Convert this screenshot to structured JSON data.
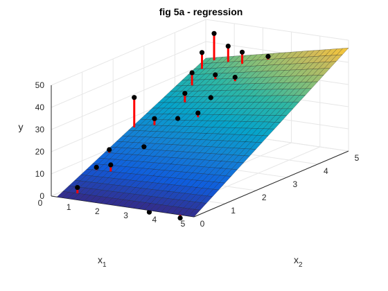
{
  "chart_data": {
    "type": "surface",
    "title": "fig 5a - regression",
    "xlabel": "x",
    "xlabel_sub": "1",
    "ylabel": "x",
    "ylabel_sub": "2",
    "zlabel": "y",
    "xlim": [
      0,
      5
    ],
    "ylim": [
      0,
      5
    ],
    "zlim": [
      0,
      50
    ],
    "xticks": [
      "0",
      "1",
      "2",
      "3",
      "4",
      "5"
    ],
    "yticks": [
      "0",
      "1",
      "2",
      "3",
      "4",
      "5"
    ],
    "zticks": [
      "0",
      "10",
      "20",
      "30",
      "40",
      "50"
    ],
    "grid": true,
    "colormap": "parula",
    "surface_points": [
      {
        "x1": 0.2,
        "x2": 0.0,
        "y": 0.0
      },
      {
        "x1": 5.0,
        "x2": 0.0,
        "y": 0.0
      },
      {
        "x1": 0.0,
        "x2": 5.0,
        "y": 32.5
      },
      {
        "x1": 5.0,
        "x2": 5.0,
        "y": 46.5
      }
    ],
    "points": [
      {
        "x1": 4.3,
        "x2": 0.2,
        "y": -3
      },
      {
        "x1": 3.0,
        "x2": 0.4,
        "y": -4
      },
      {
        "x1": 0.7,
        "x2": 0.2,
        "y": 4
      },
      {
        "x1": 0.3,
        "x2": 1.6,
        "y": 12
      },
      {
        "x1": 0.5,
        "x2": 1.0,
        "y": 8
      },
      {
        "x1": 1.0,
        "x2": 1.0,
        "y": 10
      },
      {
        "x1": 3.0,
        "x2": 1.0,
        "y": 2
      },
      {
        "x1": 4.0,
        "x2": 1.0,
        "y": 4
      },
      {
        "x1": 2.3,
        "x2": 1.2,
        "y": 5
      },
      {
        "x1": 1.3,
        "x2": 1.8,
        "y": 14
      },
      {
        "x1": 2.5,
        "x2": 1.6,
        "y": 10
      },
      {
        "x1": 4.0,
        "x2": 1.8,
        "y": 10
      },
      {
        "x1": 0.2,
        "x2": 2.5,
        "y": 30
      },
      {
        "x1": 0.8,
        "x2": 2.6,
        "y": 21
      },
      {
        "x1": 1.4,
        "x2": 2.8,
        "y": 21
      },
      {
        "x1": 2.0,
        "x2": 2.9,
        "y": 24
      },
      {
        "x1": 2.6,
        "x2": 2.6,
        "y": 17
      },
      {
        "x1": 3.2,
        "x2": 2.5,
        "y": 15
      },
      {
        "x1": 4.0,
        "x2": 2.6,
        "y": 17
      },
      {
        "x1": 4.6,
        "x2": 2.9,
        "y": 23
      },
      {
        "x1": 1.0,
        "x2": 3.4,
        "y": 28
      },
      {
        "x1": 1.8,
        "x2": 3.5,
        "y": 27
      },
      {
        "x1": 2.5,
        "x2": 3.4,
        "y": 26
      },
      {
        "x1": 3.2,
        "x2": 3.3,
        "y": 21
      },
      {
        "x1": 3.8,
        "x2": 3.5,
        "y": 24
      },
      {
        "x1": 4.4,
        "x2": 3.3,
        "y": 23
      },
      {
        "x1": 0.6,
        "x2": 4.0,
        "y": 33
      },
      {
        "x1": 1.2,
        "x2": 4.2,
        "y": 32
      },
      {
        "x1": 2.0,
        "x2": 4.1,
        "y": 33
      },
      {
        "x1": 2.8,
        "x2": 4.0,
        "y": 26
      },
      {
        "x1": 3.5,
        "x2": 4.2,
        "y": 30
      },
      {
        "x1": 4.2,
        "x2": 4.4,
        "y": 34
      },
      {
        "x1": 0.4,
        "x2": 4.9,
        "y": 45
      },
      {
        "x1": 0.3,
        "x2": 4.6,
        "y": 38
      },
      {
        "x1": 1.0,
        "x2": 4.8,
        "y": 41
      },
      {
        "x1": 1.6,
        "x2": 4.7,
        "y": 40
      },
      {
        "x1": 2.4,
        "x2": 4.8,
        "y": 39
      },
      {
        "x1": 3.0,
        "x2": 4.9,
        "y": 36
      },
      {
        "x1": 3.6,
        "x2": 4.8,
        "y": 33
      },
      {
        "x1": 4.3,
        "x2": 4.9,
        "y": 43
      }
    ]
  },
  "colors": {
    "marker": "#000000",
    "residual": "#ff0000",
    "grid": "#e6e6e6",
    "axis": "#262626",
    "mesh": "#1a1a1a"
  }
}
